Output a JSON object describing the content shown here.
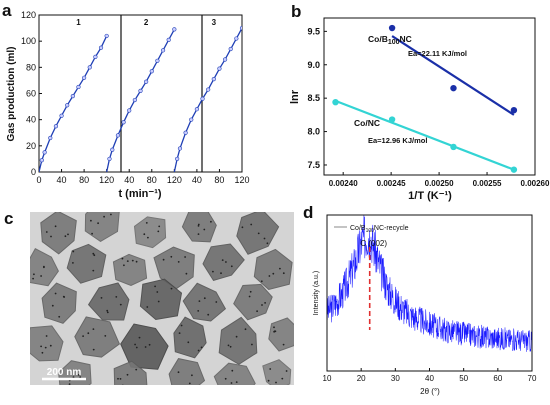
{
  "panels": {
    "a": {
      "label": "a"
    },
    "b": {
      "label": "b"
    },
    "c": {
      "label": "c",
      "scale_bar": "200 nm"
    },
    "d": {
      "label": "d"
    }
  },
  "chart_data": [
    {
      "id": "a",
      "type": "line",
      "xlabel": "t (min⁻¹)",
      "ylabel": "Gas production (ml)",
      "xlim": [
        0,
        360
      ],
      "ylim": [
        0,
        120
      ],
      "x_tick_labels": [
        "0",
        "40",
        "80",
        "120",
        "40",
        "80",
        "120",
        "40",
        "80",
        "120"
      ],
      "y_ticks": [
        0,
        20,
        40,
        60,
        80,
        100,
        120
      ],
      "cycles": [
        "1",
        "2",
        "3"
      ],
      "series": [
        {
          "name": "1",
          "color": "#1f3fb5",
          "x": [
            0,
            5,
            10,
            20,
            30,
            40,
            50,
            60,
            70,
            80,
            90,
            100,
            110,
            120
          ],
          "y": [
            0,
            9,
            15,
            26,
            35,
            43,
            51,
            58,
            65,
            72,
            80,
            88,
            95,
            104
          ]
        },
        {
          "name": "2",
          "color": "#1f3fb5",
          "x": [
            0,
            5,
            10,
            20,
            30,
            40,
            50,
            60,
            70,
            80,
            90,
            100,
            110,
            120
          ],
          "y": [
            0,
            10,
            17,
            28,
            38,
            47,
            55,
            62,
            69,
            77,
            85,
            93,
            101,
            109
          ]
        },
        {
          "name": "3",
          "color": "#1f3fb5",
          "x": [
            0,
            5,
            10,
            20,
            30,
            40,
            50,
            60,
            70,
            80,
            90,
            100,
            110,
            120
          ],
          "y": [
            0,
            10,
            18,
            30,
            40,
            48,
            56,
            63,
            71,
            79,
            86,
            94,
            102,
            110
          ]
        }
      ]
    },
    {
      "id": "b",
      "type": "scatter",
      "xlabel": "1/T (K⁻¹)",
      "ylabel": "lnr",
      "xlim": [
        0.00238,
        0.0026
      ],
      "ylim": [
        7.35,
        9.7
      ],
      "x_ticks": [
        0.0024,
        0.00245,
        0.0025,
        0.00255,
        0.0026
      ],
      "x_tick_labels": [
        "0.00240",
        "0.00245",
        "0.00250",
        "0.00255",
        "0.00260"
      ],
      "y_ticks": [
        7.5,
        8.0,
        8.5,
        9.0,
        9.5
      ],
      "y_tick_labels": [
        "7.5",
        "8.0",
        "8.5",
        "9.0",
        "9.5"
      ],
      "series": [
        {
          "name": "Co/B100NC",
          "color": "#1a2fa8",
          "x": [
            0.002451,
            0.002515,
            0.002578
          ],
          "y": [
            9.55,
            8.65,
            8.32
          ],
          "fit": {
            "x": [
              0.002451,
              0.002578
            ],
            "y": [
              9.43,
              8.25
            ]
          },
          "label_main": "Co/B",
          "label_sub": "100",
          "label_tail": "NC",
          "annotation": "Ea=22.11 KJ/mol"
        },
        {
          "name": "Co/NC",
          "color": "#33d4d4",
          "x": [
            0.002392,
            0.002451,
            0.002515,
            0.002578
          ],
          "y": [
            8.44,
            8.18,
            7.77,
            7.43
          ],
          "fit": {
            "x": [
              0.002392,
              0.002578
            ],
            "y": [
              8.46,
              7.43
            ]
          },
          "label_main": "Co/NC",
          "label_sub": "",
          "label_tail": "",
          "annotation": "Ea=12.96 KJ/mol"
        }
      ]
    },
    {
      "id": "d",
      "type": "line",
      "xlabel": "2θ (°)",
      "ylabel": "Intensity (a.u.)",
      "xlim": [
        10,
        70
      ],
      "x_ticks": [
        10,
        20,
        30,
        40,
        50,
        60,
        70
      ],
      "x_tick_labels": [
        "10",
        "20",
        "30",
        "40",
        "50",
        "60",
        "70"
      ],
      "legend": {
        "main": "Co/B",
        "sub": "100",
        "tail": "NC-recycle"
      },
      "peak_label": "C (002)",
      "peak_position": 22.5,
      "series": [
        {
          "name": "Co/B100NC-recycle",
          "color": "#1a1aff",
          "x": [
            10,
            12,
            14,
            16,
            18,
            19,
            20,
            21,
            22,
            23,
            24,
            26,
            28,
            30,
            33,
            36,
            40,
            45,
            50,
            55,
            60,
            65,
            70
          ],
          "y": [
            0.38,
            0.42,
            0.48,
            0.57,
            0.68,
            0.75,
            0.82,
            0.86,
            0.88,
            0.85,
            0.78,
            0.63,
            0.52,
            0.45,
            0.38,
            0.34,
            0.3,
            0.26,
            0.24,
            0.22,
            0.21,
            0.2,
            0.19
          ]
        }
      ]
    }
  ]
}
